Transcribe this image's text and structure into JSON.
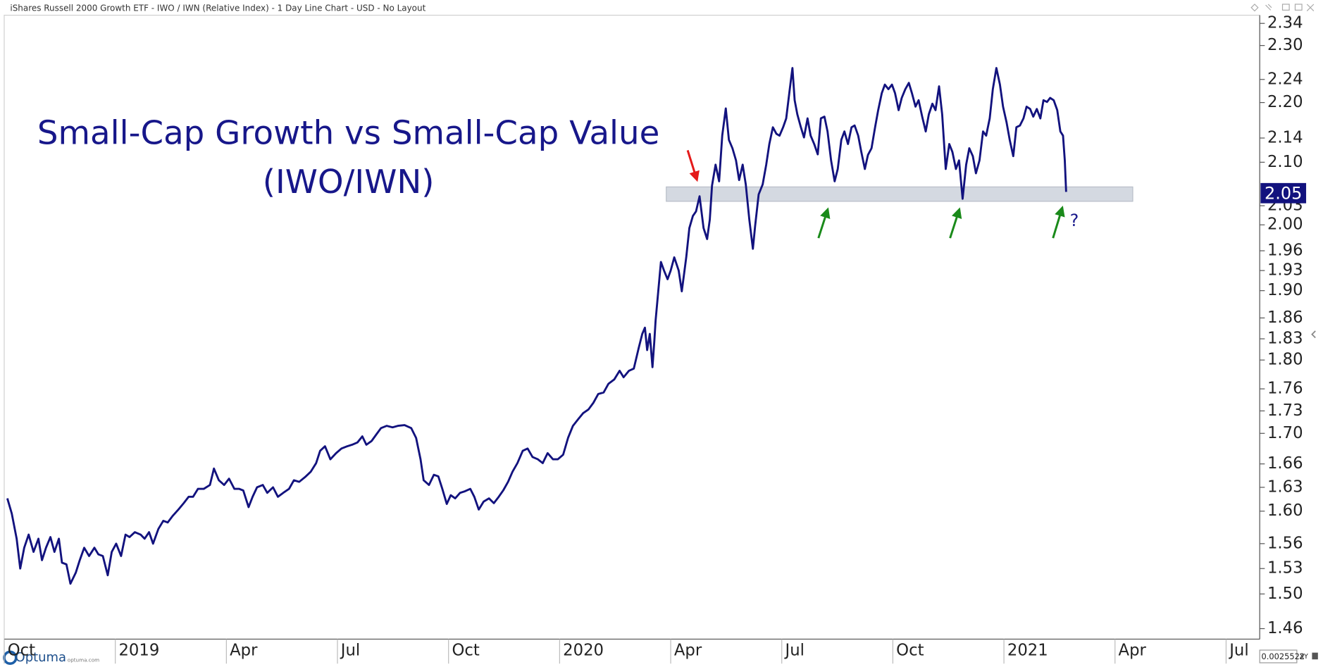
{
  "chart_data": {
    "type": "line",
    "header": "iShares Russell 2000 Growth ETF - IWO / IWN (Relative Index) - 1 Day Line Chart - USD - No Layout",
    "title": "Small-Cap Growth vs Small-Cap Value",
    "subtitle": "(IWO/IWN)",
    "annotations": [
      "?"
    ],
    "color": "#12127e",
    "log_scale": true,
    "current_value": 2.05,
    "band": {
      "x": [
        2020.24,
        2021.29
      ],
      "y": [
        2.037,
        2.06
      ]
    },
    "branding": {
      "name": "Optuma",
      "site": "optuma.com"
    },
    "status": {
      "scale": "0.0025522",
      "mode": "XY"
    },
    "xlim": [
      2018.75,
      2021.57
    ],
    "ylim": [
      1.45,
      2.355
    ],
    "xticks": [
      {
        "value": 2018.75,
        "label": "Oct"
      },
      2019,
      {
        "value": 2019.25,
        "label": "Apr"
      },
      {
        "value": 2019.5,
        "label": "Jul"
      },
      {
        "value": 2019.75,
        "label": "Oct"
      },
      2020,
      {
        "value": 2020.25,
        "label": "Apr"
      },
      {
        "value": 2020.5,
        "label": "Jul"
      },
      {
        "value": 2020.75,
        "label": "Oct"
      },
      2021,
      {
        "value": 2021.25,
        "label": "Apr"
      },
      {
        "value": 2021.5,
        "label": "Jul"
      }
    ],
    "yticks": [
      2.34,
      {
        "value": 2.3,
        "label": "2.30"
      },
      2.24,
      {
        "value": 2.2,
        "label": "2.20"
      },
      2.14,
      {
        "value": 2.1,
        "label": "2.10"
      },
      2.03,
      {
        "value": 2,
        "label": "2.00"
      },
      1.96,
      1.93,
      {
        "value": 1.9,
        "label": "1.90"
      },
      1.86,
      1.83,
      {
        "value": 1.8,
        "label": "1.80"
      },
      1.76,
      1.73,
      {
        "value": 1.7,
        "label": "1.70"
      },
      1.66,
      1.63,
      {
        "value": 1.6,
        "label": "1.60"
      },
      1.56,
      1.53,
      {
        "value": 1.5,
        "label": "1.50"
      },
      1.46
    ],
    "x": [
      2018.757,
      2018.767,
      2018.778,
      2018.786,
      2018.795,
      2018.805,
      2018.816,
      2018.827,
      2018.835,
      2018.844,
      2018.854,
      2018.863,
      2018.873,
      2018.88,
      2018.89,
      2018.899,
      2018.911,
      2018.92,
      2018.93,
      2018.941,
      2018.953,
      2018.962,
      2018.972,
      2018.983,
      2018.992,
      2019.002,
      2019.013,
      2019.023,
      2019.032,
      2019.044,
      2019.057,
      2019.066,
      2019.076,
      2019.085,
      2019.097,
      2019.108,
      2019.118,
      2019.129,
      2019.142,
      2019.154,
      2019.165,
      2019.175,
      2019.186,
      2019.199,
      2019.213,
      2019.222,
      2019.233,
      2019.245,
      2019.256,
      2019.268,
      2019.279,
      2019.288,
      2019.3,
      2019.309,
      2019.319,
      2019.332,
      2019.342,
      2019.355,
      2019.366,
      2019.378,
      2019.391,
      2019.402,
      2019.414,
      2019.427,
      2019.44,
      2019.452,
      2019.461,
      2019.472,
      2019.484,
      2019.497,
      2019.509,
      2019.522,
      2019.533,
      2019.545,
      2019.556,
      2019.565,
      2019.577,
      2019.588,
      2019.598,
      2019.611,
      2019.624,
      2019.636,
      2019.651,
      2019.666,
      2019.677,
      2019.687,
      2019.694,
      2019.706,
      2019.717,
      2019.727,
      2019.736,
      2019.746,
      2019.755,
      2019.765,
      2019.776,
      2019.787,
      2019.799,
      2019.808,
      2019.818,
      2019.829,
      2019.841,
      2019.852,
      2019.863,
      2019.873,
      2019.884,
      2019.894,
      2019.905,
      2019.917,
      2019.928,
      2019.939,
      2019.951,
      2019.962,
      2019.973,
      2019.985,
      2019.996,
      2020.008,
      2020.019,
      2020.03,
      2020.042,
      2020.053,
      2020.065,
      2020.076,
      2020.087,
      2020.099,
      2020.11,
      2020.123,
      2020.135,
      2020.144,
      2020.156,
      2020.167,
      2020.178,
      2020.186,
      2020.192,
      2020.197,
      2020.203,
      2020.209,
      2020.213,
      2020.216,
      2020.222,
      2020.228,
      2020.235,
      2020.243,
      2020.25,
      2020.258,
      2020.268,
      2020.275,
      2020.285,
      2020.292,
      2020.3,
      2020.307,
      2020.315,
      2020.324,
      2020.332,
      2020.338,
      2020.343,
      2020.351,
      2020.359,
      2020.366,
      2020.374,
      2020.381,
      2020.389,
      2020.397,
      2020.404,
      2020.412,
      2020.419,
      2020.427,
      2020.435,
      2020.44,
      2020.448,
      2020.457,
      2020.465,
      2020.472,
      2020.48,
      2020.488,
      2020.495,
      2020.503,
      2020.51,
      2020.518,
      2020.524,
      2020.529,
      2020.535,
      2020.543,
      2020.55,
      2020.558,
      2020.565,
      2020.573,
      2020.581,
      2020.588,
      2020.596,
      2020.603,
      2020.611,
      2020.619,
      2020.626,
      2020.634,
      2020.641,
      2020.649,
      2020.657,
      2020.664,
      2020.672,
      2020.679,
      2020.687,
      2020.694,
      2020.702,
      2020.71,
      2020.717,
      2020.725,
      2020.732,
      2020.74,
      2020.748,
      2020.755,
      2020.763,
      2020.77,
      2020.778,
      2020.786,
      2020.793,
      2020.801,
      2020.808,
      2020.816,
      2020.824,
      2020.831,
      2020.839,
      2020.846,
      2020.854,
      2020.861,
      2020.869,
      2020.877,
      2020.884,
      2020.892,
      2020.899,
      2020.907,
      2020.915,
      2020.922,
      2020.93,
      2020.937,
      2020.945,
      2020.953,
      2020.96,
      2020.968,
      2020.975,
      2020.983,
      2020.991,
      2020.998,
      2021.006,
      2021.013,
      2021.021,
      2021.028,
      2021.036,
      2021.044,
      2021.051,
      2021.059,
      2021.066,
      2021.074,
      2021.082,
      2021.089,
      2021.097,
      2021.104,
      2021.112,
      2021.12,
      2021.127,
      2021.133,
      2021.137,
      2021.14
    ],
    "values": [
      1.616,
      1.597,
      1.566,
      1.53,
      1.555,
      1.571,
      1.55,
      1.566,
      1.54,
      1.555,
      1.568,
      1.55,
      1.566,
      1.537,
      1.535,
      1.512,
      1.525,
      1.54,
      1.555,
      1.545,
      1.555,
      1.547,
      1.545,
      1.522,
      1.55,
      1.56,
      1.545,
      1.571,
      1.568,
      1.574,
      1.571,
      1.566,
      1.574,
      1.56,
      1.578,
      1.588,
      1.586,
      1.594,
      1.602,
      1.61,
      1.618,
      1.618,
      1.628,
      1.628,
      1.633,
      1.654,
      1.639,
      1.633,
      1.641,
      1.628,
      1.628,
      1.626,
      1.605,
      1.618,
      1.63,
      1.633,
      1.623,
      1.63,
      1.618,
      1.623,
      1.628,
      1.639,
      1.637,
      1.643,
      1.65,
      1.661,
      1.677,
      1.683,
      1.666,
      1.674,
      1.68,
      1.683,
      1.685,
      1.688,
      1.696,
      1.685,
      1.69,
      1.699,
      1.707,
      1.71,
      1.708,
      1.71,
      1.711,
      1.707,
      1.694,
      1.666,
      1.639,
      1.633,
      1.646,
      1.644,
      1.628,
      1.609,
      1.62,
      1.616,
      1.623,
      1.625,
      1.628,
      1.618,
      1.602,
      1.612,
      1.616,
      1.61,
      1.618,
      1.626,
      1.637,
      1.65,
      1.661,
      1.677,
      1.68,
      1.669,
      1.666,
      1.661,
      1.674,
      1.666,
      1.666,
      1.672,
      1.694,
      1.71,
      1.719,
      1.727,
      1.732,
      1.741,
      1.753,
      1.755,
      1.767,
      1.773,
      1.785,
      1.776,
      1.785,
      1.788,
      1.817,
      1.837,
      1.846,
      1.814,
      1.837,
      1.79,
      1.825,
      1.856,
      1.899,
      1.943,
      1.93,
      1.917,
      1.93,
      1.95,
      1.93,
      1.899,
      1.95,
      1.995,
      2.014,
      2.021,
      2.045,
      1.995,
      1.978,
      2.008,
      2.062,
      2.096,
      2.069,
      2.144,
      2.19,
      2.137,
      2.123,
      2.103,
      2.071,
      2.096,
      2.064,
      2.008,
      1.963,
      1.998,
      2.048,
      2.064,
      2.096,
      2.13,
      2.158,
      2.147,
      2.144,
      2.158,
      2.173,
      2.223,
      2.26,
      2.204,
      2.18,
      2.158,
      2.141,
      2.173,
      2.144,
      2.13,
      2.113,
      2.173,
      2.176,
      2.151,
      2.103,
      2.069,
      2.089,
      2.137,
      2.151,
      2.13,
      2.158,
      2.161,
      2.144,
      2.117,
      2.089,
      2.112,
      2.123,
      2.158,
      2.187,
      2.216,
      2.231,
      2.223,
      2.231,
      2.216,
      2.187,
      2.208,
      2.223,
      2.234,
      2.216,
      2.193,
      2.204,
      2.176,
      2.151,
      2.18,
      2.198,
      2.187,
      2.228,
      2.18,
      2.089,
      2.13,
      2.117,
      2.089,
      2.103,
      2.041,
      2.096,
      2.123,
      2.11,
      2.082,
      2.103,
      2.151,
      2.144,
      2.173,
      2.223,
      2.26,
      2.231,
      2.193,
      2.166,
      2.137,
      2.11,
      2.158,
      2.161,
      2.173,
      2.193,
      2.189,
      2.176,
      2.189,
      2.173,
      2.204,
      2.201,
      2.208,
      2.204,
      2.187,
      2.151,
      2.144,
      2.103,
      2.052
    ]
  }
}
